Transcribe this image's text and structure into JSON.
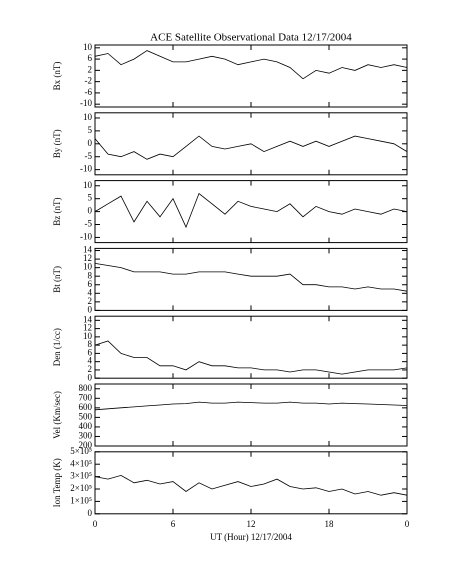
{
  "chart_data": [
    {
      "type": "line",
      "title": "ACE Satellite Observational Data   12/17/2004",
      "y_label": "Bx (nT)",
      "x": [
        0,
        1,
        2,
        3,
        4,
        5,
        6,
        7,
        8,
        9,
        10,
        11,
        12,
        13,
        14,
        15,
        16,
        17,
        18,
        19,
        20,
        21,
        22,
        23,
        24
      ],
      "values": [
        7,
        8,
        4,
        6,
        9,
        7,
        5,
        5,
        6,
        7,
        6,
        4,
        5,
        6,
        5,
        3,
        -1,
        2,
        1,
        3,
        2,
        4,
        3,
        4,
        3
      ],
      "xlim": [
        0,
        24
      ],
      "xticks": [
        0,
        6,
        12,
        18,
        {
          "value": 24,
          "label": "0"
        }
      ],
      "ylim": [
        -11,
        11
      ],
      "yticks": [
        -10,
        -6,
        -2,
        2,
        6,
        10
      ]
    },
    {
      "type": "line",
      "y_label": "By (nT)",
      "x": [
        0,
        1,
        2,
        3,
        4,
        5,
        6,
        7,
        8,
        9,
        10,
        11,
        12,
        13,
        14,
        15,
        16,
        17,
        18,
        19,
        20,
        21,
        22,
        23,
        24
      ],
      "values": [
        2,
        -4,
        -5,
        -3,
        -6,
        -4,
        -5,
        -1,
        3,
        -1,
        -2,
        -1,
        0,
        -3,
        -1,
        1,
        -1,
        1,
        -1,
        1,
        3,
        2,
        1,
        0,
        -3
      ],
      "xlim": [
        0,
        24
      ],
      "xticks": [
        0,
        6,
        12,
        18,
        {
          "value": 24,
          "label": "0"
        }
      ],
      "ylim": [
        -12,
        12
      ],
      "yticks": [
        -10,
        -5,
        0,
        5,
        10
      ]
    },
    {
      "type": "line",
      "y_label": "Bz (nT)",
      "x": [
        0,
        1,
        2,
        3,
        4,
        5,
        6,
        7,
        8,
        9,
        10,
        11,
        12,
        13,
        14,
        15,
        16,
        17,
        18,
        19,
        20,
        21,
        22,
        23,
        24
      ],
      "values": [
        0,
        3,
        6,
        -4,
        4,
        -2,
        5,
        -6,
        7,
        3,
        -1,
        4,
        2,
        1,
        0,
        3,
        -2,
        2,
        0,
        -1,
        1,
        0,
        -1,
        1,
        0
      ],
      "xlim": [
        0,
        24
      ],
      "xticks": [
        0,
        6,
        12,
        18,
        {
          "value": 24,
          "label": "0"
        }
      ],
      "ylim": [
        -12,
        12
      ],
      "yticks": [
        -10,
        -5,
        0,
        5,
        10
      ]
    },
    {
      "type": "line",
      "y_label": "Bt (nT)",
      "x": [
        0,
        1,
        2,
        3,
        4,
        5,
        6,
        7,
        8,
        9,
        10,
        11,
        12,
        13,
        14,
        15,
        16,
        17,
        18,
        19,
        20,
        21,
        22,
        23,
        24
      ],
      "values": [
        11,
        10.5,
        10,
        9,
        9,
        9,
        8.5,
        8.5,
        9,
        9,
        9,
        8.5,
        8,
        8,
        8,
        8.5,
        6,
        6,
        5.5,
        5.5,
        5,
        5.5,
        5,
        5,
        4.5
      ],
      "xlim": [
        0,
        24
      ],
      "xticks": [
        0,
        6,
        12,
        18,
        {
          "value": 24,
          "label": "0"
        }
      ],
      "ylim": [
        0,
        14.5
      ],
      "yticks": [
        0,
        2,
        4,
        6,
        8,
        10,
        12,
        14
      ]
    },
    {
      "type": "line",
      "y_label": "Den (1/cc)",
      "x": [
        0,
        1,
        2,
        3,
        4,
        5,
        6,
        7,
        8,
        9,
        10,
        11,
        12,
        13,
        14,
        15,
        16,
        17,
        18,
        19,
        20,
        21,
        22,
        23,
        24
      ],
      "values": [
        8,
        9,
        6,
        5,
        5,
        3,
        3,
        2,
        4,
        3,
        3,
        2.5,
        2.5,
        2,
        2,
        1.5,
        2,
        2,
        1.5,
        1,
        1.5,
        2,
        2,
        2,
        2.5
      ],
      "xlim": [
        0,
        24
      ],
      "xticks": [
        0,
        6,
        12,
        18,
        {
          "value": 24,
          "label": "0"
        }
      ],
      "ylim": [
        0,
        15
      ],
      "yticks": [
        0,
        2,
        4,
        6,
        8,
        10,
        12,
        14
      ]
    },
    {
      "type": "line",
      "y_label": "Vel (Km/sec)",
      "x": [
        0,
        1,
        2,
        3,
        4,
        5,
        6,
        7,
        8,
        9,
        10,
        11,
        12,
        13,
        14,
        15,
        16,
        17,
        18,
        19,
        20,
        21,
        22,
        23,
        24
      ],
      "values": [
        580,
        590,
        600,
        610,
        620,
        630,
        640,
        645,
        660,
        650,
        650,
        660,
        655,
        650,
        650,
        660,
        650,
        650,
        640,
        650,
        645,
        640,
        635,
        630,
        625
      ],
      "xlim": [
        0,
        24
      ],
      "xticks": [
        0,
        6,
        12,
        18,
        {
          "value": 24,
          "label": "0"
        }
      ],
      "ylim": [
        200,
        850
      ],
      "yticks": [
        200,
        300,
        400,
        500,
        600,
        700,
        800
      ]
    },
    {
      "type": "line",
      "y_label": "Ion Temp (K)",
      "x_label": "UT (Hour)  12/17/2004",
      "x": [
        0,
        1,
        2,
        3,
        4,
        5,
        6,
        7,
        8,
        9,
        10,
        11,
        12,
        13,
        14,
        15,
        16,
        17,
        18,
        19,
        20,
        21,
        22,
        23,
        24
      ],
      "values": [
        300000,
        280000,
        310000,
        250000,
        270000,
        240000,
        260000,
        180000,
        250000,
        200000,
        230000,
        260000,
        220000,
        240000,
        280000,
        220000,
        200000,
        210000,
        180000,
        200000,
        160000,
        180000,
        150000,
        170000,
        150000
      ],
      "xlim": [
        0,
        24
      ],
      "xticks": [
        0,
        6,
        12,
        18,
        {
          "value": 24,
          "label": "0"
        }
      ],
      "ylim": [
        0,
        500000
      ],
      "yticks": [
        {
          "value": 0,
          "label": "0"
        },
        {
          "value": 100000,
          "label": "1×10⁵"
        },
        {
          "value": 200000,
          "label": "2×10⁵"
        },
        {
          "value": 300000,
          "label": "3×10⁵"
        },
        {
          "value": 400000,
          "label": "4×10⁵"
        },
        {
          "value": 500000,
          "label": "5×10⁵"
        }
      ]
    }
  ]
}
